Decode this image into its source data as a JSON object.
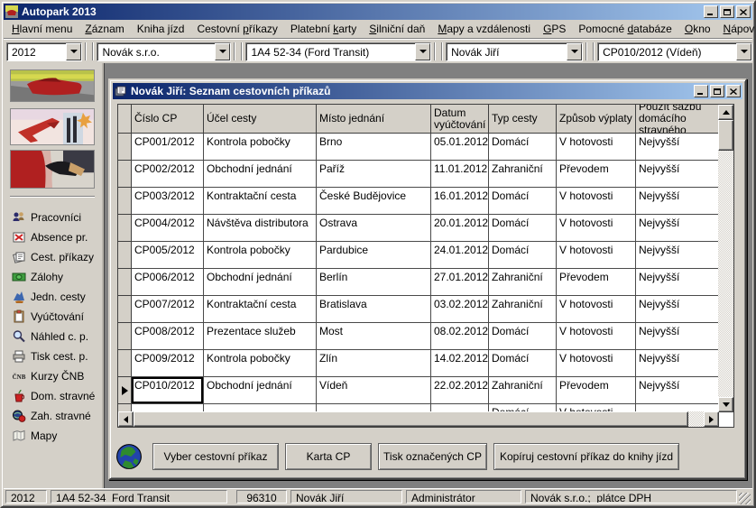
{
  "window": {
    "title": "Autopark 2013"
  },
  "menu": {
    "items": [
      {
        "label": "Hlavní menu",
        "accel": 0
      },
      {
        "label": "Záznam",
        "accel": 0
      },
      {
        "label": "Kniha jízd",
        "accel": 6
      },
      {
        "label": "Cestovní příkazy",
        "accel": 9
      },
      {
        "label": "Platební karty",
        "accel": 9
      },
      {
        "label": "Silniční daň",
        "accel": 0
      },
      {
        "label": "Mapy a vzdálenosti",
        "accel": 0
      },
      {
        "label": "GPS",
        "accel": 0
      },
      {
        "label": "Pomocné databáze",
        "accel": 8
      },
      {
        "label": "Okno",
        "accel": 0
      },
      {
        "label": "Nápověda",
        "accel": 0
      }
    ]
  },
  "toolbar": {
    "combos": [
      {
        "name": "year",
        "value": "2012"
      },
      {
        "name": "company",
        "value": "Novák s.r.o."
      },
      {
        "name": "vehicle",
        "value": "1A4 52-34 (Ford Transit)"
      },
      {
        "name": "driver",
        "value": "Novák Jiří"
      },
      {
        "name": "trip-order",
        "value": "CP010/2012 (Vídeň)"
      }
    ]
  },
  "sidebar": {
    "photos": [
      "car-photo",
      "airplane-photo",
      "fuel-pump-photo"
    ],
    "items": [
      {
        "icon": "people-icon",
        "label": "Pracovníci"
      },
      {
        "icon": "absence-icon",
        "label": "Absence pr."
      },
      {
        "icon": "travel-orders-icon",
        "label": "Cest. příkazy"
      },
      {
        "icon": "money-icon",
        "label": "Zálohy"
      },
      {
        "icon": "single-trips-icon",
        "label": "Jedn. cesty"
      },
      {
        "icon": "clipboard-icon",
        "label": "Vyúčtování"
      },
      {
        "icon": "magnifier-icon",
        "label": "Náhled c. p."
      },
      {
        "icon": "printer-icon",
        "label": "Tisk cest. p."
      },
      {
        "icon": "cnb-icon",
        "label": "Kurzy ČNB"
      },
      {
        "icon": "domestic-meal-icon",
        "label": "Dom. stravné"
      },
      {
        "icon": "foreign-meal-icon",
        "label": "Zah. stravné"
      },
      {
        "icon": "maps-icon",
        "label": "Mapy"
      }
    ]
  },
  "child_window": {
    "title": "Novák Jiří: Seznam cestovních příkazů",
    "table": {
      "columns": [
        "Číslo CP",
        "Účel cesty",
        "Místo jednání",
        "Datum vyúčtování",
        "Typ cesty",
        "Způsob výplaty",
        "Použít sazbu domácího stravného"
      ],
      "rows": [
        [
          "CP001/2012",
          "Kontrola pobočky",
          "Brno",
          "05.01.2012",
          "Domácí",
          "V hotovosti",
          "Nejvyšší"
        ],
        [
          "CP002/2012",
          "Obchodní jednání",
          "Paříž",
          "11.01.2012",
          "Zahraniční",
          "Převodem",
          "Nejvyšší"
        ],
        [
          "CP003/2012",
          "Kontraktační cesta",
          "České Budějovice",
          "16.01.2012",
          "Domácí",
          "V hotovosti",
          "Nejvyšší"
        ],
        [
          "CP004/2012",
          "Návštěva distributora",
          "Ostrava",
          "20.01.2012",
          "Domácí",
          "V hotovosti",
          "Nejvyšší"
        ],
        [
          "CP005/2012",
          "Kontrola pobočky",
          "Pardubice",
          "24.01.2012",
          "Domácí",
          "V hotovosti",
          "Nejvyšší"
        ],
        [
          "CP006/2012",
          "Obchodní jednání",
          "Berlín",
          "27.01.2012",
          "Zahraniční",
          "Převodem",
          "Nejvyšší"
        ],
        [
          "CP007/2012",
          "Kontraktační cesta",
          "Bratislava",
          "03.02.2012",
          "Zahraniční",
          "V hotovosti",
          "Nejvyšší"
        ],
        [
          "CP008/2012",
          "Prezentace služeb",
          "Most",
          "08.02.2012",
          "Domácí",
          "V hotovosti",
          "Nejvyšší"
        ],
        [
          "CP009/2012",
          "Kontrola pobočky",
          "Zlín",
          "14.02.2012",
          "Domácí",
          "V hotovosti",
          "Nejvyšší"
        ],
        [
          "CP010/2012",
          "Obchodní jednání",
          "Vídeň",
          "22.02.2012",
          "Zahraniční",
          "Převodem",
          "Nejvyšší"
        ]
      ],
      "selected_row_index": 9,
      "new_row_preview": {
        "typ_cesty": "Domácí",
        "zpusob_vyplaty": "V hotovosti"
      }
    },
    "buttons": [
      "Vyber cestovní příkaz",
      "Karta CP",
      "Tisk označených CP",
      "Kopíruj cestovní příkaz do knihy jízd"
    ]
  },
  "statusbar": {
    "panels": [
      "2012",
      "1A4 52-34  Ford Transit",
      "96310",
      "Novák Jiří",
      "Administrátor",
      "Novák s.r.o.;  plátce DPH"
    ]
  },
  "colors": {
    "face": "#d4d0c8",
    "titlebar_start": "#0a246a",
    "titlebar_end": "#a6caf0",
    "mdi_background": "#808080",
    "grid_border": "#404040",
    "selection_marker": "#000000"
  }
}
